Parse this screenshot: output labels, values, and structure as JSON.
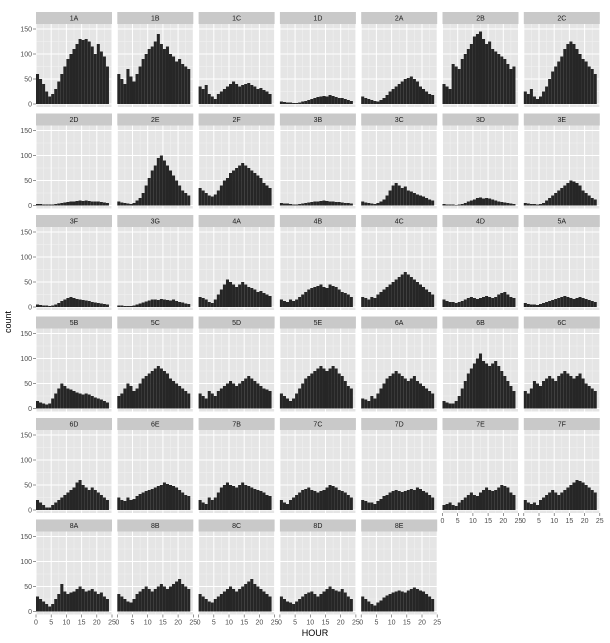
{
  "chart_data": {
    "type": "bar",
    "xlabel": "HOUR",
    "ylabel": "count",
    "xlim": [
      0,
      25
    ],
    "ylim": [
      -6,
      160
    ],
    "x_ticks": [
      0,
      5,
      10,
      15,
      20,
      25
    ],
    "y_ticks": [
      0,
      50,
      100,
      150
    ],
    "grid": true,
    "legend": "none",
    "bar_color": "#262626",
    "panel_bg": "#e5e5e5",
    "strip_bg": "#c9c9c9",
    "bins": [
      0,
      1,
      2,
      3,
      4,
      5,
      6,
      7,
      8,
      9,
      10,
      11,
      12,
      13,
      14,
      15,
      16,
      17,
      18,
      19,
      20,
      21,
      22,
      23
    ],
    "panels": [
      {
        "name": "1A",
        "values": [
          60,
          50,
          40,
          25,
          15,
          20,
          30,
          45,
          60,
          75,
          90,
          100,
          110,
          120,
          130,
          128,
          130,
          125,
          115,
          100,
          120,
          105,
          95,
          75
        ]
      },
      {
        "name": "1B",
        "values": [
          60,
          50,
          40,
          70,
          55,
          45,
          60,
          75,
          90,
          100,
          110,
          115,
          125,
          140,
          120,
          110,
          115,
          100,
          95,
          85,
          90,
          80,
          75,
          70
        ]
      },
      {
        "name": "1C",
        "values": [
          35,
          30,
          38,
          20,
          15,
          10,
          20,
          25,
          30,
          35,
          40,
          45,
          40,
          35,
          38,
          40,
          42,
          38,
          35,
          30,
          32,
          28,
          25,
          20
        ]
      },
      {
        "name": "1D",
        "values": [
          5,
          4,
          3,
          3,
          2,
          2,
          3,
          5,
          6,
          8,
          10,
          12,
          14,
          15,
          16,
          15,
          18,
          16,
          14,
          12,
          12,
          10,
          8,
          6
        ]
      },
      {
        "name": "2A",
        "values": [
          15,
          12,
          10,
          8,
          6,
          5,
          8,
          12,
          18,
          25,
          30,
          35,
          40,
          45,
          50,
          52,
          55,
          50,
          45,
          35,
          30,
          25,
          20,
          18
        ]
      },
      {
        "name": "2B",
        "values": [
          40,
          35,
          30,
          80,
          75,
          70,
          90,
          100,
          110,
          120,
          135,
          140,
          145,
          130,
          120,
          125,
          110,
          105,
          100,
          95,
          90,
          80,
          70,
          75
        ]
      },
      {
        "name": "2C",
        "values": [
          25,
          20,
          30,
          15,
          10,
          15,
          25,
          35,
          50,
          65,
          75,
          85,
          95,
          110,
          120,
          125,
          120,
          110,
          100,
          90,
          85,
          75,
          70,
          60
        ]
      },
      {
        "name": "2D",
        "values": [
          3,
          3,
          2,
          2,
          2,
          2,
          3,
          4,
          5,
          6,
          7,
          8,
          8,
          9,
          10,
          9,
          10,
          9,
          8,
          8,
          8,
          7,
          6,
          5
        ]
      },
      {
        "name": "2E",
        "values": [
          8,
          6,
          5,
          4,
          3,
          5,
          10,
          15,
          25,
          40,
          55,
          70,
          80,
          95,
          100,
          90,
          80,
          70,
          60,
          50,
          40,
          30,
          25,
          20
        ]
      },
      {
        "name": "2F",
        "values": [
          35,
          30,
          25,
          20,
          18,
          22,
          30,
          40,
          50,
          55,
          65,
          70,
          75,
          80,
          85,
          80,
          75,
          70,
          65,
          60,
          55,
          45,
          40,
          35
        ]
      },
      {
        "name": "3B",
        "values": [
          5,
          4,
          4,
          3,
          2,
          2,
          3,
          4,
          5,
          6,
          7,
          8,
          8,
          9,
          10,
          9,
          8,
          8,
          7,
          7,
          6,
          5,
          5,
          4
        ]
      },
      {
        "name": "3C",
        "values": [
          8,
          6,
          5,
          4,
          3,
          5,
          8,
          12,
          20,
          30,
          40,
          45,
          40,
          35,
          38,
          30,
          28,
          25,
          22,
          20,
          18,
          15,
          12,
          10
        ]
      },
      {
        "name": "3D",
        "values": [
          3,
          2,
          2,
          2,
          1,
          2,
          3,
          5,
          8,
          10,
          12,
          15,
          16,
          14,
          15,
          14,
          12,
          10,
          8,
          7,
          6,
          5,
          4,
          3
        ]
      },
      {
        "name": "3E",
        "values": [
          5,
          4,
          3,
          3,
          2,
          3,
          5,
          10,
          15,
          20,
          25,
          30,
          35,
          40,
          45,
          50,
          48,
          45,
          40,
          30,
          25,
          20,
          15,
          12
        ]
      },
      {
        "name": "3F",
        "values": [
          5,
          4,
          3,
          3,
          2,
          3,
          5,
          8,
          12,
          15,
          18,
          20,
          18,
          16,
          15,
          14,
          13,
          12,
          10,
          9,
          8,
          7,
          6,
          5
        ]
      },
      {
        "name": "3G",
        "values": [
          3,
          3,
          2,
          2,
          2,
          3,
          5,
          7,
          9,
          11,
          13,
          15,
          15,
          14,
          16,
          15,
          14,
          13,
          15,
          12,
          10,
          9,
          7,
          6
        ]
      },
      {
        "name": "4A",
        "values": [
          20,
          18,
          15,
          10,
          8,
          15,
          25,
          35,
          45,
          55,
          50,
          45,
          40,
          45,
          50,
          45,
          40,
          38,
          35,
          30,
          32,
          28,
          25,
          22
        ]
      },
      {
        "name": "4B",
        "values": [
          15,
          12,
          10,
          15,
          12,
          15,
          20,
          25,
          30,
          35,
          38,
          40,
          42,
          45,
          40,
          38,
          45,
          42,
          40,
          35,
          30,
          28,
          25,
          20
        ]
      },
      {
        "name": "4C",
        "values": [
          20,
          18,
          15,
          20,
          18,
          25,
          30,
          35,
          40,
          45,
          50,
          55,
          60,
          65,
          70,
          65,
          60,
          55,
          50,
          45,
          40,
          35,
          30,
          25
        ]
      },
      {
        "name": "4D",
        "values": [
          15,
          12,
          10,
          10,
          8,
          10,
          12,
          15,
          18,
          20,
          18,
          16,
          18,
          20,
          22,
          20,
          18,
          20,
          25,
          28,
          30,
          25,
          20,
          18
        ]
      },
      {
        "name": "5A",
        "values": [
          8,
          6,
          5,
          5,
          4,
          6,
          8,
          10,
          12,
          14,
          16,
          18,
          20,
          22,
          20,
          18,
          16,
          18,
          20,
          18,
          16,
          14,
          12,
          10
        ]
      },
      {
        "name": "5B",
        "values": [
          15,
          12,
          10,
          8,
          10,
          20,
          30,
          40,
          50,
          45,
          40,
          38,
          35,
          32,
          30,
          28,
          30,
          28,
          25,
          22,
          20,
          18,
          15,
          12
        ]
      },
      {
        "name": "5C",
        "values": [
          25,
          30,
          40,
          50,
          45,
          35,
          40,
          50,
          60,
          65,
          70,
          75,
          80,
          85,
          80,
          75,
          70,
          60,
          55,
          50,
          45,
          40,
          35,
          30
        ]
      },
      {
        "name": "5D",
        "values": [
          30,
          25,
          20,
          35,
          30,
          25,
          35,
          40,
          45,
          50,
          55,
          50,
          45,
          50,
          55,
          60,
          65,
          60,
          55,
          50,
          45,
          40,
          38,
          35
        ]
      },
      {
        "name": "5E",
        "values": [
          30,
          25,
          20,
          15,
          20,
          30,
          40,
          50,
          60,
          65,
          70,
          75,
          80,
          85,
          80,
          75,
          80,
          85,
          80,
          70,
          65,
          55,
          45,
          40
        ]
      },
      {
        "name": "6A",
        "values": [
          20,
          18,
          15,
          25,
          20,
          30,
          40,
          50,
          60,
          65,
          70,
          75,
          70,
          65,
          60,
          55,
          60,
          65,
          55,
          50,
          45,
          40,
          35,
          30
        ]
      },
      {
        "name": "6B",
        "values": [
          15,
          12,
          10,
          10,
          15,
          25,
          40,
          55,
          70,
          80,
          90,
          100,
          110,
          95,
          90,
          85,
          90,
          95,
          85,
          75,
          65,
          55,
          45,
          35
        ]
      },
      {
        "name": "6C",
        "values": [
          35,
          30,
          40,
          55,
          50,
          45,
          55,
          60,
          65,
          60,
          55,
          65,
          70,
          75,
          70,
          65,
          60,
          65,
          70,
          60,
          50,
          45,
          40,
          35
        ]
      },
      {
        "name": "6D",
        "values": [
          20,
          15,
          10,
          5,
          5,
          10,
          15,
          20,
          25,
          30,
          35,
          40,
          45,
          55,
          60,
          50,
          45,
          40,
          45,
          40,
          35,
          30,
          25,
          20
        ]
      },
      {
        "name": "6E",
        "values": [
          25,
          20,
          18,
          25,
          20,
          22,
          28,
          32,
          35,
          38,
          40,
          42,
          45,
          48,
          50,
          55,
          52,
          50,
          48,
          45,
          40,
          35,
          30,
          28
        ]
      },
      {
        "name": "7B",
        "values": [
          20,
          15,
          12,
          25,
          20,
          25,
          35,
          45,
          50,
          55,
          50,
          48,
          45,
          50,
          55,
          50,
          48,
          45,
          42,
          40,
          38,
          35,
          30,
          28
        ]
      },
      {
        "name": "7C",
        "values": [
          20,
          15,
          12,
          20,
          25,
          30,
          35,
          40,
          42,
          45,
          40,
          38,
          35,
          38,
          40,
          45,
          50,
          48,
          45,
          40,
          38,
          35,
          30,
          25
        ]
      },
      {
        "name": "7D",
        "values": [
          20,
          18,
          15,
          15,
          12,
          18,
          22,
          28,
          30,
          35,
          38,
          40,
          38,
          36,
          38,
          40,
          42,
          40,
          45,
          42,
          38,
          35,
          30,
          25
        ]
      },
      {
        "name": "7E",
        "values": [
          10,
          12,
          15,
          10,
          8,
          15,
          20,
          25,
          30,
          35,
          30,
          28,
          35,
          40,
          45,
          40,
          38,
          40,
          45,
          50,
          48,
          45,
          35,
          30
        ]
      },
      {
        "name": "7F",
        "values": [
          20,
          15,
          12,
          15,
          10,
          20,
          25,
          30,
          35,
          40,
          35,
          30,
          35,
          40,
          45,
          50,
          55,
          60,
          58,
          55,
          50,
          45,
          40,
          35
        ]
      },
      {
        "name": "8A",
        "values": [
          30,
          25,
          20,
          15,
          10,
          15,
          25,
          35,
          55,
          40,
          35,
          38,
          40,
          45,
          50,
          45,
          40,
          42,
          45,
          40,
          35,
          38,
          30,
          25
        ]
      },
      {
        "name": "8B",
        "values": [
          35,
          30,
          25,
          20,
          18,
          25,
          35,
          40,
          45,
          50,
          45,
          40,
          45,
          50,
          55,
          50,
          45,
          50,
          55,
          60,
          65,
          55,
          50,
          45
        ]
      },
      {
        "name": "8C",
        "values": [
          35,
          30,
          25,
          20,
          18,
          25,
          30,
          35,
          40,
          45,
          50,
          45,
          40,
          45,
          50,
          55,
          60,
          65,
          55,
          50,
          45,
          40,
          35,
          30
        ]
      },
      {
        "name": "8D",
        "values": [
          30,
          25,
          20,
          18,
          15,
          20,
          25,
          30,
          35,
          38,
          40,
          35,
          30,
          35,
          40,
          45,
          50,
          45,
          42,
          40,
          45,
          38,
          30,
          25
        ]
      },
      {
        "name": "8E",
        "values": [
          30,
          25,
          20,
          15,
          12,
          18,
          22,
          28,
          32,
          35,
          38,
          40,
          42,
          40,
          38,
          42,
          45,
          48,
          45,
          42,
          40,
          35,
          30,
          25
        ]
      }
    ]
  }
}
